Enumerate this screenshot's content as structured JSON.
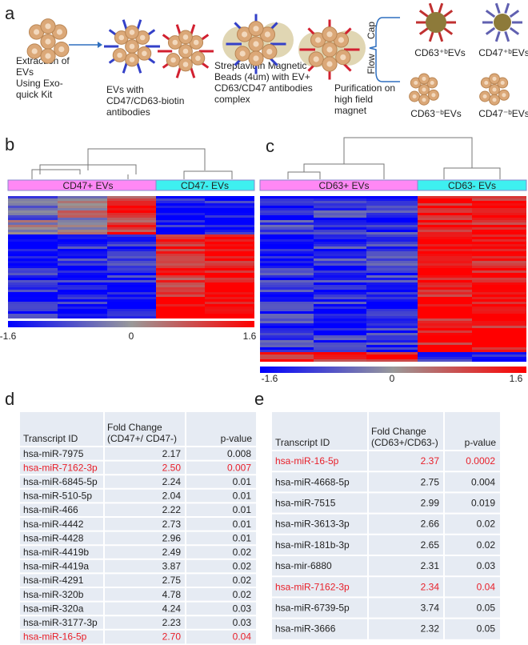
{
  "panel_labels": [
    "a",
    "b",
    "c",
    "d",
    "e"
  ],
  "diagram": {
    "step1": [
      "Extraction of",
      "EVs",
      "Using Exo-",
      "quick Kit"
    ],
    "step2": [
      "EVs with",
      "CD47/CD63-biotin",
      "antibodies"
    ],
    "step3": [
      "Streptavidin Magnetic",
      "Beads (4um)  with EV+",
      "CD63/CD47 antibodies",
      "complex"
    ],
    "step4": [
      "Purification on",
      "high field",
      "magnet"
    ],
    "cap": "Cap",
    "flow": "Flow",
    "products": [
      "CD63⁺ᵇEVs",
      "CD47⁺ᵇEVs",
      "CD63⁻ᵇEVs",
      "CD47⁻ᵇEVs"
    ]
  },
  "heatmap_b": {
    "groups": [
      "CD47+ EVs",
      "CD47- EVs"
    ],
    "colorbar_ticks": [
      -1.6,
      0,
      1.6
    ]
  },
  "heatmap_c": {
    "groups": [
      "CD63+ EVs",
      "CD63- EVs"
    ],
    "colorbar_ticks": [
      -1.6,
      0,
      1.6
    ]
  },
  "table_d": {
    "header": [
      "Transcript ID",
      [
        "Fold Change",
        "(CD47+/ CD47-)"
      ],
      "p-value"
    ],
    "rows": [
      [
        "hsa-miR-7975",
        "2.17",
        "0.008"
      ],
      [
        "hsa-miR-7162-3p",
        "2.50",
        "0.007"
      ],
      [
        "hsa-miR-6845-5p",
        "2.24",
        "0.01"
      ],
      [
        "hsa-miR-510-5p",
        "2.04",
        "0.01"
      ],
      [
        "hsa-miR-466",
        "2.22",
        "0.01"
      ],
      [
        "hsa-miR-4442",
        "2.73",
        "0.01"
      ],
      [
        "hsa-miR-4428",
        "2.96",
        "0.01"
      ],
      [
        "hsa-miR-4419b",
        "2.49",
        "0.02"
      ],
      [
        "hsa-miR-4419a",
        "3.87",
        "0.02"
      ],
      [
        "hsa-miR-4291",
        "2.75",
        "0.02"
      ],
      [
        "hsa-miR-320b",
        "4.78",
        "0.02"
      ],
      [
        "hsa-miR-320a",
        "4.24",
        "0.03"
      ],
      [
        "hsa-miR-3177-3p",
        "2.23",
        "0.03"
      ],
      [
        "hsa-miR-16-5p",
        "2.70",
        "0.04"
      ]
    ],
    "highlight_rows": [
      1,
      13
    ],
    "highlight_color": "#e8202a"
  },
  "table_e": {
    "header": [
      "Transcript ID",
      [
        "Fold Change",
        "(CD63+/CD63-)"
      ],
      "p-value"
    ],
    "rows": [
      [
        "hsa-miR-16-5p",
        "2.37",
        "0.0002"
      ],
      [
        "hsa-miR-4668-5p",
        "2.75",
        "0.004"
      ],
      [
        "hsa-miR-7515",
        "2.99",
        "0.019"
      ],
      [
        "hsa-miR-3613-3p",
        "2.66",
        "0.02"
      ],
      [
        "hsa-miR-181b-3p",
        "2.65",
        "0.02"
      ],
      [
        "hsa-mir-6880",
        "2.31",
        "0.03"
      ],
      [
        "hsa-miR-7162-3p",
        "2.34",
        "0.04"
      ],
      [
        "hsa-miR-6739-5p",
        "3.74",
        "0.05"
      ],
      [
        "hsa-miR-3666",
        "2.32",
        "0.05"
      ]
    ],
    "highlight_rows": [
      0,
      6
    ],
    "highlight_color": "#e8202a"
  }
}
